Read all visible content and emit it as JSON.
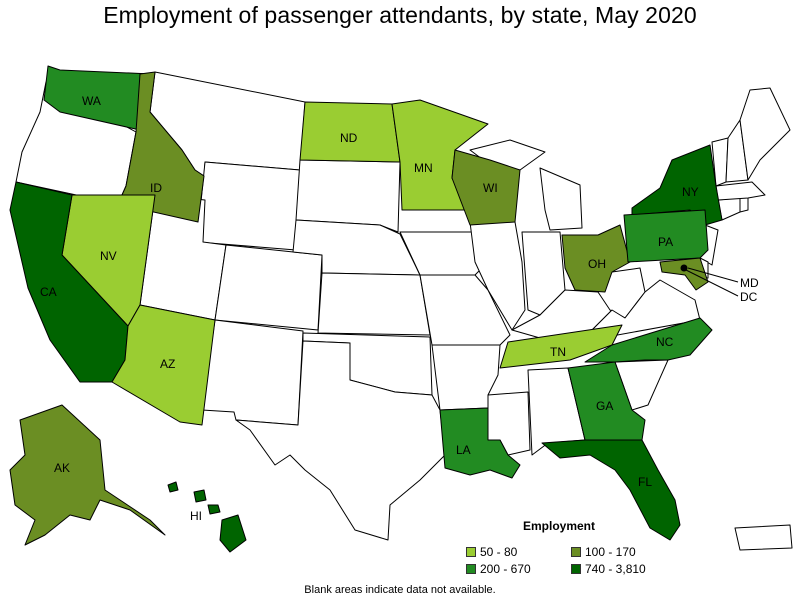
{
  "title": "Employment of passenger attendants, by state, May 2020",
  "footnote": "Blank areas indicate data not available.",
  "legend": {
    "title": "Employment",
    "items": [
      {
        "label": "50 - 80",
        "color": "#9acd32"
      },
      {
        "label": "100 - 170",
        "color": "#6b8e23"
      },
      {
        "label": "200 - 670",
        "color": "#228b22"
      },
      {
        "label": "740 - 3,810",
        "color": "#006400"
      }
    ]
  },
  "colors": {
    "blank": "#ffffff",
    "c1": "#9acd32",
    "c2": "#6b8e23",
    "c3": "#228b22",
    "c4": "#006400"
  },
  "states": [
    {
      "abbr": "WA",
      "bin": "200 - 670"
    },
    {
      "abbr": "ID",
      "bin": "100 - 170"
    },
    {
      "abbr": "NV",
      "bin": "50 - 80"
    },
    {
      "abbr": "CA",
      "bin": "740 - 3,810"
    },
    {
      "abbr": "AZ",
      "bin": "50 - 80"
    },
    {
      "abbr": "ND",
      "bin": "50 - 80"
    },
    {
      "abbr": "MN",
      "bin": "50 - 80"
    },
    {
      "abbr": "WI",
      "bin": "100 - 170"
    },
    {
      "abbr": "OH",
      "bin": "100 - 170"
    },
    {
      "abbr": "NY",
      "bin": "740 - 3,810"
    },
    {
      "abbr": "PA",
      "bin": "200 - 670"
    },
    {
      "abbr": "MD",
      "bin": "100 - 170"
    },
    {
      "abbr": "DC",
      "bin": "740 - 3,810"
    },
    {
      "abbr": "TN",
      "bin": "50 - 80"
    },
    {
      "abbr": "NC",
      "bin": "200 - 670"
    },
    {
      "abbr": "GA",
      "bin": "200 - 670"
    },
    {
      "abbr": "LA",
      "bin": "200 - 670"
    },
    {
      "abbr": "FL",
      "bin": "740 - 3,810"
    },
    {
      "abbr": "AK",
      "bin": "100 - 170"
    },
    {
      "abbr": "HI",
      "bin": "740 - 3,810"
    }
  ]
}
